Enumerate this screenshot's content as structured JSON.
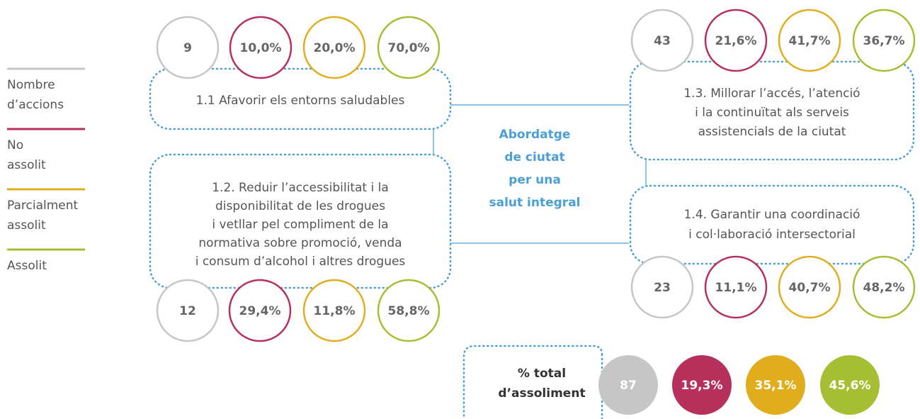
{
  "legend": [
    {
      "lines": [
        "Nombre",
        "d’accions"
      ]
    },
    {
      "lines": [
        "No",
        "assolit"
      ]
    },
    {
      "lines": [
        "Parcialment",
        "assolit"
      ]
    },
    {
      "lines": [
        "Assolit"
      ]
    }
  ],
  "center": {
    "lines": [
      "Abordatge",
      "de ciutat",
      "per una",
      "salut integral"
    ]
  },
  "blocks": [
    {
      "lines": [
        "1.1 Afavorir els entorns saludables"
      ],
      "stats": [
        "9",
        "10,0%",
        "20,0%",
        "70,0%"
      ]
    },
    {
      "lines": [
        "1.2. Reduir l’accessibilitat i la",
        "disponibilitat de les drogues",
        "i vetllar pel compliment de la",
        "normativa sobre promoció, venda",
        "i consum d’alcohol i altres drogues"
      ],
      "stats": [
        "12",
        "29,4%",
        "11,8%",
        "58,8%"
      ]
    },
    {
      "lines": [
        "1.3. Millorar l’accés, l’atenció",
        "i la continuïtat als serveis",
        "assistencials de la ciutat"
      ],
      "stats": [
        "43",
        "21,6%",
        "41,7%",
        "36,7%"
      ]
    },
    {
      "lines": [
        "1.4. Garantir una coordinació",
        "i col·laboració intersectorial"
      ],
      "stats": [
        "23",
        "11,1%",
        "40,7%",
        "48,2%"
      ]
    }
  ],
  "total": {
    "lines": [
      "% total",
      "d’assoliment"
    ],
    "stats": [
      "87",
      "19,3%",
      "35,1%",
      "45,6%"
    ]
  }
}
